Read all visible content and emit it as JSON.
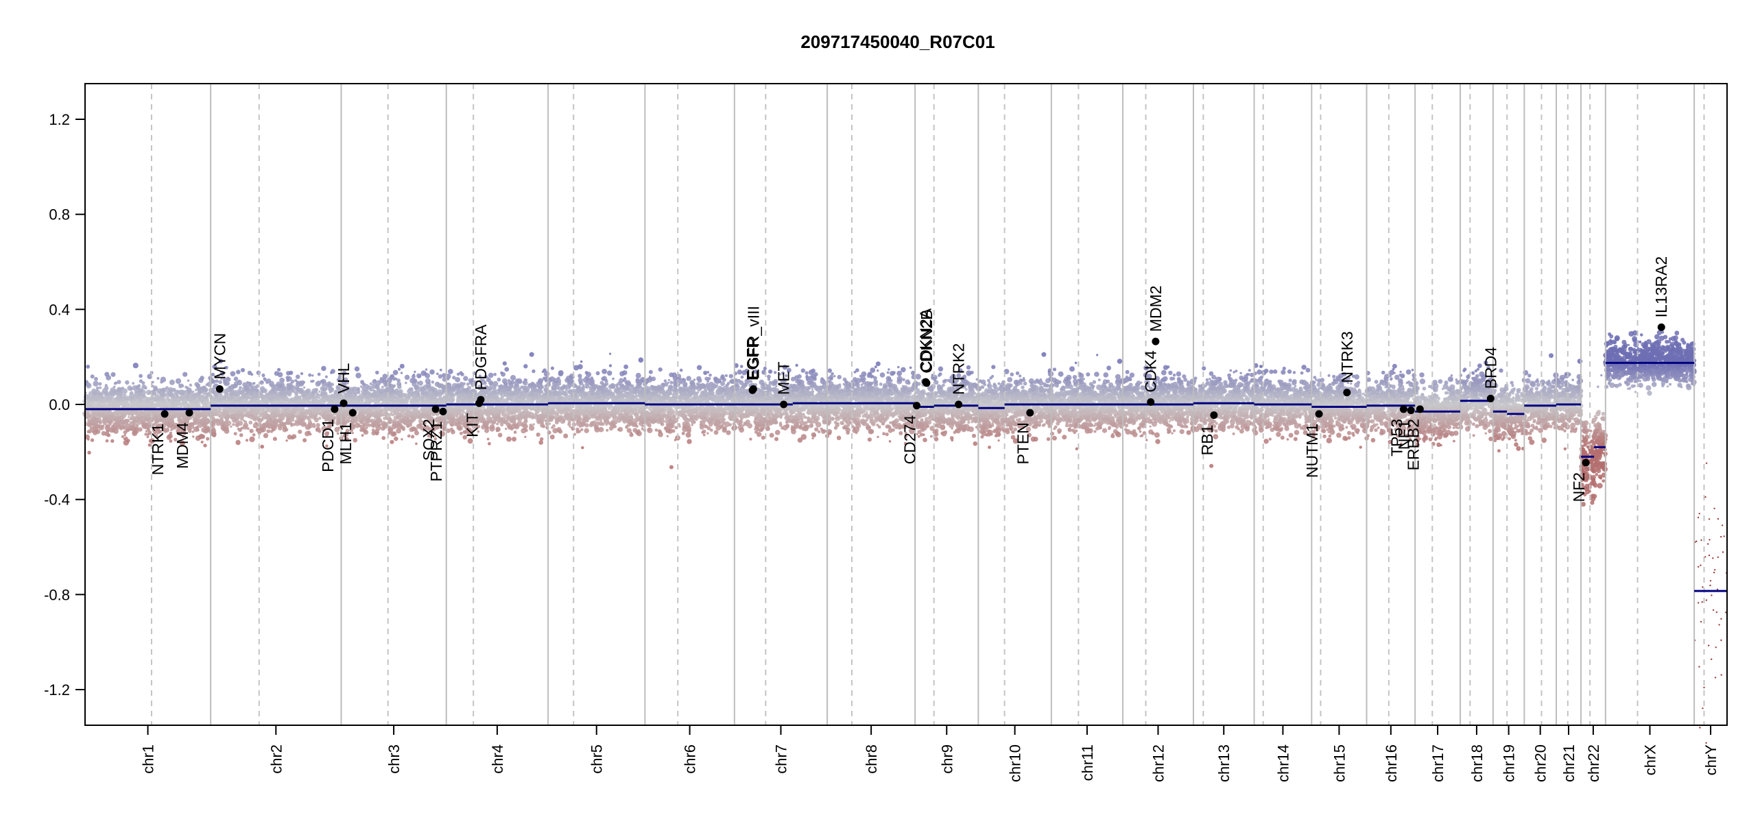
{
  "chart_data": {
    "type": "scatter",
    "title": "209717450040_R07C01",
    "xlabel": "",
    "ylabel": "",
    "ylim": [
      -1.35,
      1.35
    ],
    "y_ticks": [
      1.2,
      0.8,
      0.4,
      0.0,
      -0.4,
      -0.8,
      -1.2
    ],
    "y_tick_labels": [
      "1.2",
      "0.8",
      "0.4",
      "0.0",
      "-0.4",
      "-0.8",
      "-1.2"
    ],
    "genome_length_units": [
      0,
      100
    ],
    "chromosomes": [
      {
        "name": "chr1",
        "start": 0,
        "end": 7.65,
        "centromere": 4.05
      },
      {
        "name": "chr2",
        "start": 7.65,
        "end": 15.6,
        "centromere": 10.6
      },
      {
        "name": "chr3",
        "start": 15.6,
        "end": 22.0,
        "centromere": 18.45
      },
      {
        "name": "chr4",
        "start": 22.0,
        "end": 28.2,
        "centromere": 23.65
      },
      {
        "name": "chr5",
        "start": 28.2,
        "end": 34.1,
        "centromere": 29.75
      },
      {
        "name": "chr6",
        "start": 34.1,
        "end": 39.55,
        "centromere": 36.1
      },
      {
        "name": "chr7",
        "start": 39.55,
        "end": 45.2,
        "centromere": 41.45
      },
      {
        "name": "chr8",
        "start": 45.2,
        "end": 50.55,
        "centromere": 46.7
      },
      {
        "name": "chr9",
        "start": 50.55,
        "end": 54.4,
        "centromere": 51.7
      },
      {
        "name": "chr10",
        "start": 54.4,
        "end": 58.85,
        "centromere": 56.0
      },
      {
        "name": "chr11",
        "start": 58.85,
        "end": 63.2,
        "centromere": 60.5
      },
      {
        "name": "chr12",
        "start": 63.2,
        "end": 67.5,
        "centromere": 64.6
      },
      {
        "name": "chr13",
        "start": 67.5,
        "end": 71.2,
        "centromere": 68.1
      },
      {
        "name": "chr14",
        "start": 71.2,
        "end": 74.7,
        "centromere": 71.75
      },
      {
        "name": "chr15",
        "start": 74.7,
        "end": 78.05,
        "centromere": 75.25
      },
      {
        "name": "chr16",
        "start": 78.05,
        "end": 81.0,
        "centromere": 79.4
      },
      {
        "name": "chr17",
        "start": 81.0,
        "end": 83.75,
        "centromere": 82.05
      },
      {
        "name": "chr18",
        "start": 83.75,
        "end": 85.75,
        "centromere": 84.35
      },
      {
        "name": "chr19",
        "start": 85.75,
        "end": 87.65,
        "centromere": 86.6
      },
      {
        "name": "chr20",
        "start": 87.65,
        "end": 89.6,
        "centromere": 88.7
      },
      {
        "name": "chr21",
        "start": 89.6,
        "end": 91.1,
        "centromere": 90.3
      },
      {
        "name": "chr22",
        "start": 91.1,
        "end": 92.6,
        "centromere": 91.65
      },
      {
        "name": "chrX",
        "start": 92.6,
        "end": 98.0,
        "centromere": 94.55
      },
      {
        "name": "chrY",
        "start": 98.0,
        "end": 100.0,
        "centromere": 98.6
      }
    ],
    "segments": [
      {
        "start": 0,
        "end": 7.65,
        "value": -0.02
      },
      {
        "start": 7.65,
        "end": 15.6,
        "value": -0.005
      },
      {
        "start": 15.6,
        "end": 22.0,
        "value": -0.005
      },
      {
        "start": 22.0,
        "end": 28.2,
        "value": 0.0
      },
      {
        "start": 28.2,
        "end": 34.1,
        "value": 0.005
      },
      {
        "start": 34.1,
        "end": 39.55,
        "value": 0.0
      },
      {
        "start": 39.55,
        "end": 43.1,
        "value": 0.0
      },
      {
        "start": 43.1,
        "end": 45.2,
        "value": 0.005
      },
      {
        "start": 45.2,
        "end": 50.55,
        "value": 0.005
      },
      {
        "start": 50.55,
        "end": 51.7,
        "value": -0.01
      },
      {
        "start": 51.7,
        "end": 54.4,
        "value": -0.005
      },
      {
        "start": 54.4,
        "end": 56.0,
        "value": -0.015
      },
      {
        "start": 56.0,
        "end": 58.85,
        "value": 0.0
      },
      {
        "start": 58.85,
        "end": 63.2,
        "value": 0.0
      },
      {
        "start": 63.2,
        "end": 67.5,
        "value": 0.0
      },
      {
        "start": 67.5,
        "end": 71.2,
        "value": 0.005
      },
      {
        "start": 71.2,
        "end": 74.7,
        "value": 0.0
      },
      {
        "start": 74.7,
        "end": 78.05,
        "value": -0.01
      },
      {
        "start": 78.05,
        "end": 81.0,
        "value": -0.005
      },
      {
        "start": 81.0,
        "end": 83.75,
        "value": -0.03
      },
      {
        "start": 83.75,
        "end": 85.75,
        "value": 0.015
      },
      {
        "start": 85.75,
        "end": 86.6,
        "value": -0.03
      },
      {
        "start": 86.6,
        "end": 87.65,
        "value": -0.04
      },
      {
        "start": 87.65,
        "end": 89.6,
        "value": -0.005
      },
      {
        "start": 89.6,
        "end": 91.1,
        "value": 0.0
      },
      {
        "start": 91.1,
        "end": 91.9,
        "value": -0.22
      },
      {
        "start": 91.9,
        "end": 92.6,
        "value": -0.18
      },
      {
        "start": 92.6,
        "end": 98.0,
        "value": 0.175
      },
      {
        "start": 98.0,
        "end": 100.0,
        "value": -0.785
      }
    ],
    "genes": [
      {
        "name": "NTRK1",
        "x": 4.85,
        "value": -0.04,
        "side": "below"
      },
      {
        "name": "MDM4",
        "x": 6.35,
        "value": -0.035,
        "side": "below"
      },
      {
        "name": "MYCN",
        "x": 8.2,
        "value": 0.065,
        "side": "above"
      },
      {
        "name": "PDCD1",
        "x": 15.2,
        "value": -0.02,
        "side": "below"
      },
      {
        "name": "VHL",
        "x": 15.75,
        "value": 0.005,
        "side": "above"
      },
      {
        "name": "MLH1",
        "x": 16.3,
        "value": -0.035,
        "side": "below"
      },
      {
        "name": "SOX2",
        "x": 21.35,
        "value": -0.02,
        "side": "below"
      },
      {
        "name": "PTPRZ1",
        "x": 21.8,
        "value": -0.03,
        "side": "below"
      },
      {
        "name": "KIT",
        "x": 24.0,
        "value": 0.005,
        "side": "below"
      },
      {
        "name": "PDGFRA",
        "x": 24.1,
        "value": 0.02,
        "side": "above"
      },
      {
        "name": "EGFR",
        "x": 40.65,
        "value": 0.06,
        "side": "above"
      },
      {
        "name": "EGFR_vIII",
        "x": 40.7,
        "value": 0.065,
        "side": "above"
      },
      {
        "name": "MET",
        "x": 42.55,
        "value": 0.0,
        "side": "above"
      },
      {
        "name": "CD274",
        "x": 50.65,
        "value": -0.005,
        "side": "below"
      },
      {
        "name": "CDKN2A",
        "x": 51.2,
        "value": 0.095,
        "side": "above"
      },
      {
        "name": "CDKN2B",
        "x": 51.25,
        "value": 0.09,
        "side": "above"
      },
      {
        "name": "NTRK2",
        "x": 53.2,
        "value": 0.0,
        "side": "above"
      },
      {
        "name": "PTEN",
        "x": 57.55,
        "value": -0.035,
        "side": "below"
      },
      {
        "name": "CDK4",
        "x": 64.9,
        "value": 0.01,
        "side": "above"
      },
      {
        "name": "MDM2",
        "x": 65.2,
        "value": 0.265,
        "side": "above"
      },
      {
        "name": "RB1",
        "x": 68.75,
        "value": -0.045,
        "side": "below"
      },
      {
        "name": "NUTM1",
        "x": 75.15,
        "value": -0.04,
        "side": "below"
      },
      {
        "name": "NTRK3",
        "x": 76.85,
        "value": 0.05,
        "side": "above"
      },
      {
        "name": "NF1",
        "x": 80.75,
        "value": -0.025,
        "side": "below"
      },
      {
        "name": "TP53",
        "x": 80.3,
        "value": -0.02,
        "side": "below"
      },
      {
        "name": "ERBB2",
        "x": 81.3,
        "value": -0.02,
        "side": "below"
      },
      {
        "name": "BRD4",
        "x": 85.6,
        "value": 0.025,
        "side": "above"
      },
      {
        "name": "NF2",
        "x": 91.4,
        "value": -0.245,
        "side": "below"
      },
      {
        "name": "IL13RA2",
        "x": 96.0,
        "value": 0.325,
        "side": "above"
      }
    ]
  }
}
